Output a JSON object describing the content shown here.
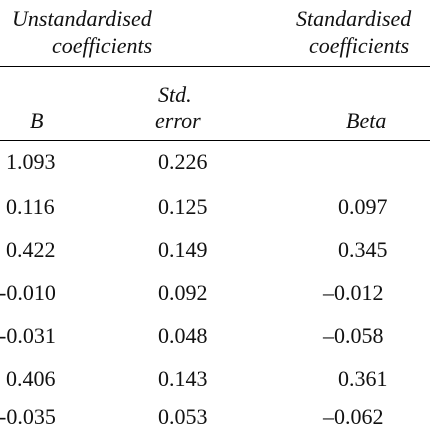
{
  "table": {
    "group_headers": {
      "unstandardised_line1": "Unstandardised",
      "unstandardised_line2": "coefficients",
      "standardised_line1": "Standardised",
      "standardised_line2": "coefficients"
    },
    "column_headers": {
      "b": "B",
      "std_error_line1": "Std.",
      "std_error_line2": "error",
      "beta": "Beta"
    },
    "rows": [
      {
        "b": "1.093",
        "se": "0.226",
        "beta": ""
      },
      {
        "b": "0.116",
        "se": "0.125",
        "beta": "0.097"
      },
      {
        "b": "0.422",
        "se": "0.149",
        "beta": "0.345"
      },
      {
        "b": "-0.010",
        "se": "0.092",
        "beta": "–0.012"
      },
      {
        "b": "-0.031",
        "se": "0.048",
        "beta": "–0.058"
      },
      {
        "b": "0.406",
        "se": "0.143",
        "beta": "0.361"
      },
      {
        "b": "-0.035",
        "se": "0.053",
        "beta": "–0.062"
      }
    ]
  }
}
